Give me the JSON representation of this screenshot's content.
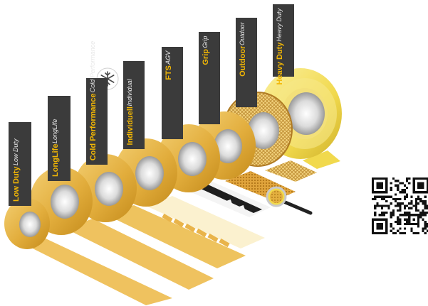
{
  "products": [
    {
      "id": "low-duty",
      "name": "Low Duty",
      "sub": "Low Duty"
    },
    {
      "id": "longlife",
      "name": "LongLife",
      "sub": "LongLife"
    },
    {
      "id": "cold-performance",
      "name": "Cold Performance",
      "sub": "Cold Performance"
    },
    {
      "id": "individuell",
      "name": "Individuell",
      "sub": "Individual"
    },
    {
      "id": "fts",
      "name": "FTS",
      "sub": "AGV"
    },
    {
      "id": "grip",
      "name": "Grip",
      "sub": "Grip"
    },
    {
      "id": "outdoor",
      "name": "Outdoor",
      "sub": "Outdoor"
    },
    {
      "id": "heavy-duty",
      "name": "Heavy Duty",
      "sub": "Heavy Duty"
    }
  ],
  "icons": {
    "cold": "snowflake-icon",
    "magnifier": "magnifier-icon",
    "qr": "qr-code"
  },
  "colors": {
    "tape": "#e7b84a",
    "tape_dark": "#c98f17",
    "heavy_duty_tape": "#f3dc5a",
    "label_bg": "#3b3b3b",
    "label_title": "#f2b705"
  }
}
